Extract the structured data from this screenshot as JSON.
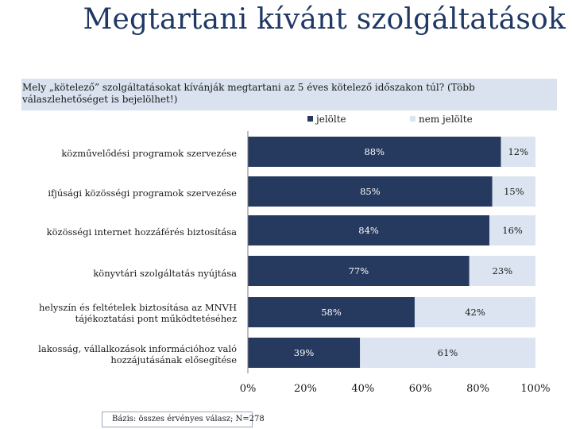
{
  "slide": {
    "title": "Megtartani kívánt szolgáltatások",
    "question": "Mely „kötelező” szolgáltatásokat kívánják megtartani az 5 éves kötelező időszakon túl? (Több válaszlehetőséget is bejelölhet!)",
    "footnote": "Bázis: összes érvényes válasz; N=278"
  },
  "colors": {
    "selected": "#263a5f",
    "not_selected": "#dbe4f0",
    "title": "#1f3864"
  },
  "chart_data": {
    "type": "bar",
    "orientation": "horizontal",
    "stacked": true,
    "categories": [
      "közművelődési programok szervezése",
      "ifjúsági közösségi programok szervezése",
      "közösségi internet hozzáférés biztosítása",
      "könyvtári szolgáltatás nyújtása",
      "helyszín és feltételek biztosítása az MNVH tájékoztatási pont működtetéséhez",
      "lakosság, vállalkozások információhoz való hozzájutásának elősegítése"
    ],
    "series": [
      {
        "name": "jelölte",
        "values": [
          88,
          85,
          84,
          77,
          58,
          39
        ],
        "labels": [
          "88%",
          "85%",
          "84%",
          "77%",
          "58%",
          "39%"
        ]
      },
      {
        "name": "nem jelölte",
        "values": [
          12,
          15,
          16,
          23,
          42,
          61
        ],
        "labels": [
          "12%",
          "15%",
          "16%",
          "23%",
          "42%",
          "61%"
        ]
      }
    ],
    "xlim": [
      0,
      100
    ],
    "xticks": [
      "0%",
      "20%",
      "40%",
      "60%",
      "80%",
      "100%"
    ],
    "legend": "top"
  }
}
